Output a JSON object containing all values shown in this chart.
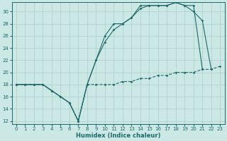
{
  "xlabel": "Humidex (Indice chaleur)",
  "bg_color": "#cce8e5",
  "grid_color": "#aacfcc",
  "line_color": "#1a6b6b",
  "xlim": [
    -0.5,
    23.5
  ],
  "ylim": [
    11.5,
    31.5
  ],
  "xticks": [
    0,
    1,
    2,
    3,
    4,
    5,
    6,
    7,
    8,
    9,
    10,
    11,
    12,
    13,
    14,
    15,
    16,
    17,
    18,
    19,
    20,
    21,
    22,
    23
  ],
  "yticks": [
    12,
    14,
    16,
    18,
    20,
    22,
    24,
    26,
    28,
    30
  ],
  "line1_x": [
    0,
    1,
    2,
    3,
    4,
    5,
    6,
    7,
    8,
    9,
    10,
    11,
    12,
    13,
    14,
    15,
    16,
    17,
    18,
    19,
    20,
    21,
    22,
    23
  ],
  "line1_y": [
    18,
    18,
    18,
    18,
    17,
    16,
    15,
    12,
    18,
    18,
    18,
    18,
    18.5,
    18.5,
    19,
    19,
    19.5,
    19.5,
    20,
    20,
    20,
    20.5,
    20.5,
    21
  ],
  "line2_x": [
    0,
    1,
    2,
    3,
    4,
    5,
    6,
    7,
    8,
    9,
    10,
    11,
    12,
    13,
    14,
    15,
    16,
    17,
    18,
    19,
    20,
    21,
    22
  ],
  "line2_y": [
    18,
    18,
    18,
    18,
    17,
    16,
    15,
    12,
    18,
    22,
    26,
    28,
    28,
    29,
    31,
    31,
    31,
    31,
    31.5,
    31,
    30,
    28.5,
    20.5
  ],
  "line3_x": [
    0,
    1,
    2,
    3,
    4,
    5,
    6,
    7,
    8,
    9,
    10,
    11,
    12,
    13,
    14,
    15,
    16,
    17,
    18,
    19,
    20,
    21
  ],
  "line3_y": [
    18,
    18,
    18,
    18,
    17,
    16,
    15,
    12,
    18,
    22,
    25,
    27,
    28,
    29,
    30.5,
    31,
    31,
    31,
    31.5,
    31,
    31,
    20.5
  ]
}
